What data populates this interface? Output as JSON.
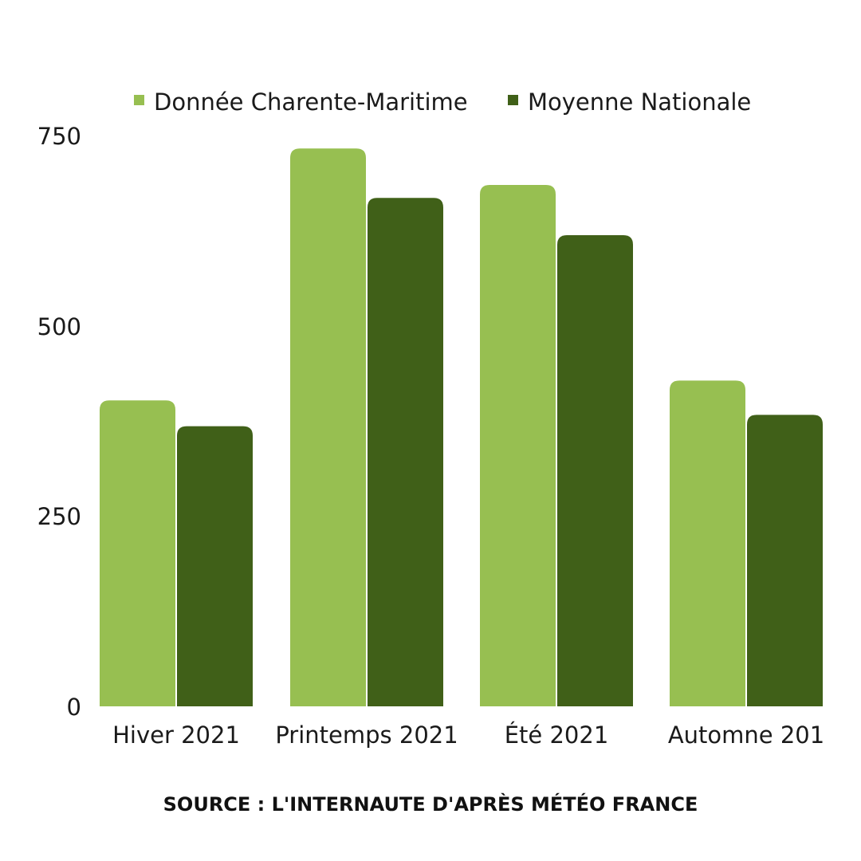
{
  "chart_data": {
    "type": "bar",
    "categories": [
      "Hiver 2021",
      "Printemps 2021",
      "Été 2021",
      "Automne 201"
    ],
    "series": [
      {
        "name": "Donnée Charente-Maritime",
        "color": "#97bf51",
        "values": [
          402,
          733,
          685,
          428
        ]
      },
      {
        "name": "Moyenne Nationale",
        "color": "#406018",
        "values": [
          368,
          668,
          619,
          383
        ]
      }
    ],
    "y_ticks": [
      "0",
      "250",
      "500",
      "750"
    ],
    "ylim": [
      0,
      750
    ],
    "grid": false,
    "legend_position": "top-center"
  },
  "source": "SOURCE : L'INTERNAUTE D'APRÈS MÉTÉO FRANCE"
}
